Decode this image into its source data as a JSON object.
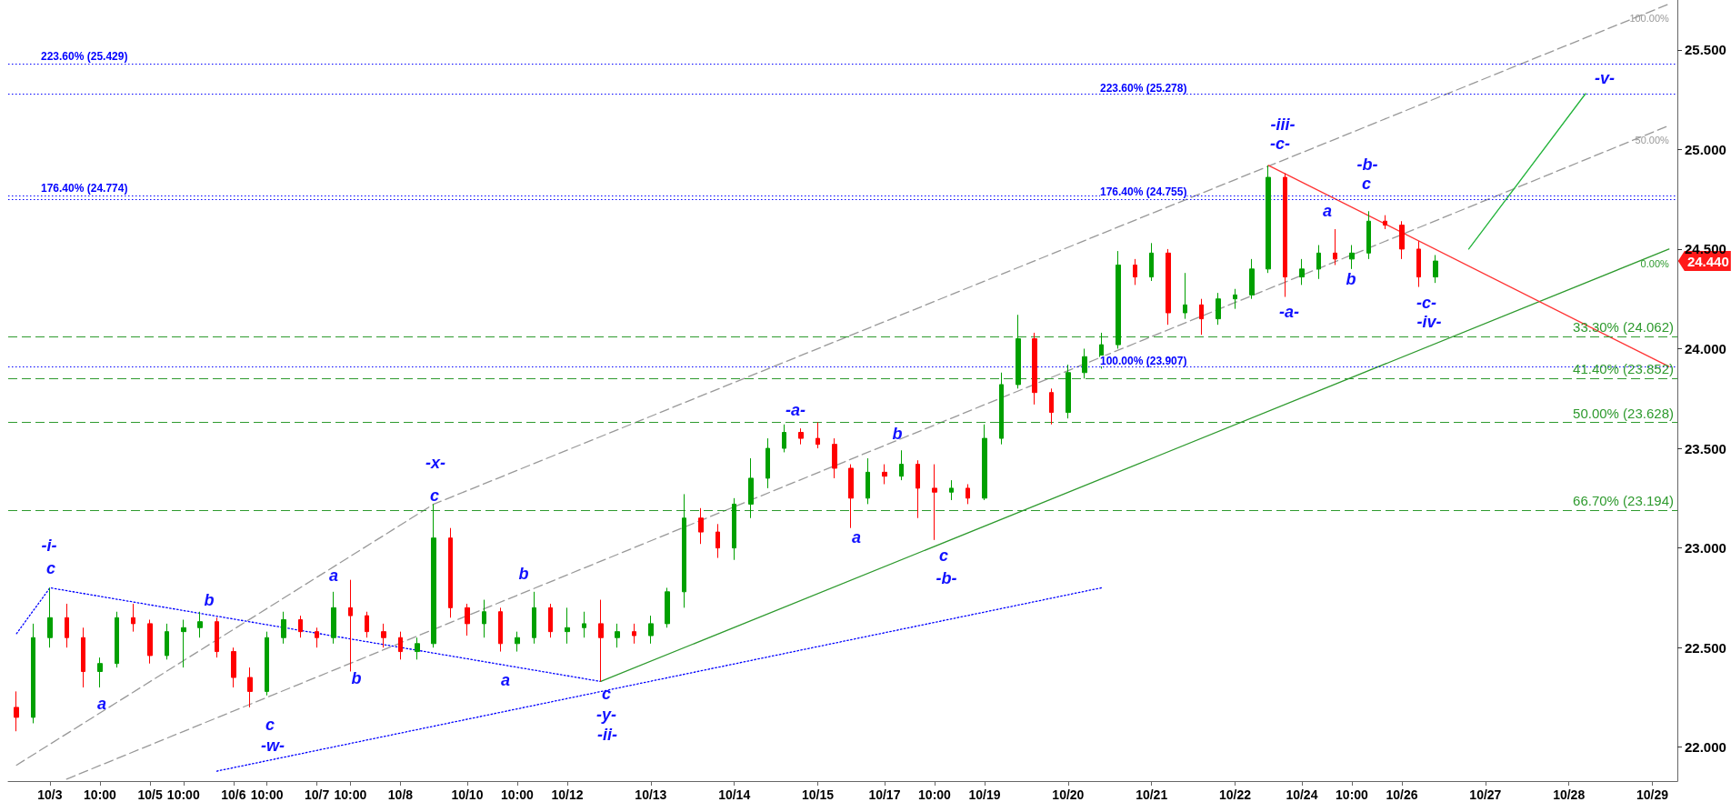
{
  "chart_data": {
    "type": "candlestick",
    "marker": "none",
    "grid": false,
    "legend": false,
    "categories": [
      null,
      null,
      "10/3",
      null,
      null,
      "10:00",
      null,
      null,
      "10/5",
      null,
      "10:00",
      null,
      null,
      "10/6",
      null,
      "10:00",
      null,
      null,
      "10/7",
      null,
      "10:00",
      null,
      null,
      "10/8",
      null,
      null,
      null,
      "10/10",
      null,
      null,
      "10:00",
      null,
      null,
      "10/12",
      null,
      null,
      null,
      null,
      "10/13",
      null,
      null,
      null,
      null,
      "10/14",
      null,
      null,
      null,
      null,
      "10/15",
      null,
      null,
      null,
      "10/17",
      null,
      null,
      "10:00",
      null,
      null,
      "10/19",
      null,
      null,
      null,
      null,
      "10/20",
      null,
      null,
      null,
      null,
      "10/21",
      null,
      null,
      null,
      null,
      "10/22",
      null,
      null,
      null,
      "10/24",
      null,
      null,
      "10:00",
      null,
      null,
      "10/26",
      null,
      null,
      null,
      null,
      "10/27",
      null,
      null,
      null,
      null,
      "10/28",
      null,
      null,
      null,
      null,
      "10/29",
      null
    ],
    "ylim": [
      21.83,
      25.75
    ],
    "yticks": [
      {
        "value": 22,
        "label": "22.000"
      },
      {
        "value": 22.5,
        "label": "22.500"
      },
      {
        "value": 23,
        "label": "23.000"
      },
      {
        "value": 23.5,
        "label": "23.500"
      },
      {
        "value": 24,
        "label": "24.000"
      },
      {
        "value": 24.5,
        "label": "24.500"
      },
      {
        "value": 25,
        "label": "25.000"
      },
      {
        "value": 25.5,
        "label": "25.500"
      }
    ],
    "ohlc": [
      [
        22.2,
        22.28,
        22.08,
        22.15
      ],
      [
        22.15,
        22.62,
        22.12,
        22.55
      ],
      [
        22.55,
        22.8,
        22.5,
        22.65
      ],
      [
        22.65,
        22.72,
        22.5,
        22.55
      ],
      [
        22.55,
        22.6,
        22.3,
        22.38
      ],
      [
        22.38,
        22.45,
        22.3,
        22.42
      ],
      [
        22.42,
        22.68,
        22.4,
        22.65
      ],
      [
        22.65,
        22.72,
        22.58,
        22.62
      ],
      [
        22.62,
        22.64,
        22.42,
        22.46
      ],
      [
        22.46,
        22.62,
        22.44,
        22.58
      ],
      [
        22.58,
        22.64,
        22.4,
        22.6
      ],
      [
        22.6,
        22.68,
        22.55,
        22.63
      ],
      [
        22.63,
        22.65,
        22.45,
        22.48
      ],
      [
        22.48,
        22.5,
        22.3,
        22.35
      ],
      [
        22.35,
        22.4,
        22.2,
        22.28
      ],
      [
        22.28,
        22.58,
        22.26,
        22.55
      ],
      [
        22.55,
        22.68,
        22.52,
        22.64
      ],
      [
        22.64,
        22.66,
        22.55,
        22.58
      ],
      [
        22.58,
        22.6,
        22.5,
        22.55
      ],
      [
        22.55,
        22.78,
        22.52,
        22.7
      ],
      [
        22.7,
        22.84,
        22.38,
        22.66
      ],
      [
        22.66,
        22.68,
        22.55,
        22.58
      ],
      [
        22.58,
        22.62,
        22.5,
        22.55
      ],
      [
        22.55,
        22.58,
        22.44,
        22.48
      ],
      [
        22.48,
        22.55,
        22.44,
        22.52
      ],
      [
        22.52,
        23.22,
        22.5,
        23.05
      ],
      [
        23.05,
        23.1,
        22.65,
        22.7
      ],
      [
        22.7,
        22.72,
        22.56,
        22.62
      ],
      [
        22.62,
        22.74,
        22.55,
        22.68
      ],
      [
        22.68,
        22.7,
        22.48,
        22.52
      ],
      [
        22.52,
        22.58,
        22.48,
        22.55
      ],
      [
        22.55,
        22.78,
        22.52,
        22.7
      ],
      [
        22.7,
        22.72,
        22.55,
        22.58
      ],
      [
        22.58,
        22.7,
        22.52,
        22.6
      ],
      [
        22.6,
        22.68,
        22.55,
        22.62
      ],
      [
        22.62,
        22.74,
        22.33,
        22.55
      ],
      [
        22.55,
        22.62,
        22.5,
        22.58
      ],
      [
        22.58,
        22.62,
        22.52,
        22.56
      ],
      [
        22.56,
        22.66,
        22.52,
        22.62
      ],
      [
        22.62,
        22.8,
        22.6,
        22.78
      ],
      [
        22.78,
        23.27,
        22.7,
        23.15
      ],
      [
        23.15,
        23.2,
        23.02,
        23.08
      ],
      [
        23.08,
        23.12,
        22.95,
        23.0
      ],
      [
        23.0,
        23.25,
        22.94,
        23.22
      ],
      [
        23.22,
        23.45,
        23.15,
        23.35
      ],
      [
        23.35,
        23.55,
        23.3,
        23.5
      ],
      [
        23.5,
        23.62,
        23.48,
        23.58
      ],
      [
        23.58,
        23.6,
        23.52,
        23.55
      ],
      [
        23.55,
        23.63,
        23.5,
        23.52
      ],
      [
        23.52,
        23.55,
        23.35,
        23.4
      ],
      [
        23.4,
        23.42,
        23.1,
        23.25
      ],
      [
        23.25,
        23.45,
        23.22,
        23.38
      ],
      [
        23.38,
        23.42,
        23.32,
        23.36
      ],
      [
        23.36,
        23.49,
        23.34,
        23.42
      ],
      [
        23.42,
        23.44,
        23.15,
        23.3
      ],
      [
        23.3,
        23.42,
        23.04,
        23.28
      ],
      [
        23.28,
        23.34,
        23.24,
        23.3
      ],
      [
        23.3,
        23.32,
        23.22,
        23.25
      ],
      [
        23.25,
        23.62,
        23.24,
        23.55
      ],
      [
        23.55,
        23.88,
        23.52,
        23.82
      ],
      [
        23.82,
        24.17,
        23.8,
        24.05
      ],
      [
        24.05,
        24.08,
        23.72,
        23.78
      ],
      [
        23.78,
        23.8,
        23.62,
        23.68
      ],
      [
        23.68,
        23.92,
        23.65,
        23.88
      ],
      [
        23.88,
        24.0,
        23.85,
        23.96
      ],
      [
        23.96,
        24.08,
        23.9,
        24.02
      ],
      [
        24.02,
        24.49,
        24.0,
        24.42
      ],
      [
        24.42,
        24.45,
        24.32,
        24.36
      ],
      [
        24.36,
        24.53,
        24.34,
        24.48
      ],
      [
        24.48,
        24.5,
        24.12,
        24.18
      ],
      [
        24.18,
        24.38,
        24.15,
        24.22
      ],
      [
        24.22,
        24.25,
        24.07,
        24.15
      ],
      [
        24.15,
        24.28,
        24.12,
        24.25
      ],
      [
        24.25,
        24.3,
        24.2,
        24.27
      ],
      [
        24.27,
        24.45,
        24.25,
        24.4
      ],
      [
        24.4,
        24.92,
        24.38,
        24.86
      ],
      [
        24.86,
        24.88,
        24.26,
        24.36
      ],
      [
        24.36,
        24.45,
        24.32,
        24.4
      ],
      [
        24.4,
        24.52,
        24.35,
        24.48
      ],
      [
        24.48,
        24.6,
        24.42,
        24.45
      ],
      [
        24.45,
        24.52,
        24.4,
        24.48
      ],
      [
        24.48,
        24.69,
        24.45,
        24.64
      ],
      [
        24.64,
        24.67,
        24.6,
        24.62
      ],
      [
        24.62,
        24.64,
        24.45,
        24.5
      ],
      [
        24.5,
        24.54,
        24.31,
        24.36
      ],
      [
        24.36,
        24.47,
        24.33,
        24.44
      ],
      null,
      null,
      null,
      null,
      null,
      null,
      null,
      null,
      null,
      null,
      null,
      null,
      null,
      null
    ],
    "series": [
      {
        "type": "line",
        "name": "100.00%",
        "color": "#999999",
        "line_style": "dashed",
        "values": [
          21.91,
          null,
          null,
          null,
          null,
          null,
          null,
          null,
          null,
          null,
          null,
          null,
          null,
          null,
          null,
          null,
          null,
          null,
          null,
          null,
          null,
          null,
          null,
          null,
          null,
          23.22,
          null,
          null,
          null,
          null,
          null,
          null,
          null,
          null,
          null,
          null,
          null,
          null,
          null,
          null,
          null,
          null,
          null,
          null,
          null,
          null,
          null,
          null,
          null,
          null,
          null,
          null,
          null,
          null,
          null,
          null,
          null,
          null,
          null,
          null,
          null,
          null,
          null,
          null,
          null,
          null,
          null,
          null,
          null,
          null,
          null,
          null,
          null,
          null,
          null,
          null,
          null,
          null,
          null,
          null,
          null,
          null,
          null,
          null,
          null,
          null,
          null,
          null,
          null,
          null,
          null,
          null,
          null,
          null,
          null,
          null,
          null,
          null,
          null,
          25.73
        ]
      },
      {
        "type": "line",
        "name": "50.00%",
        "color": "#999999",
        "line_style": "dashed",
        "values": [
          null,
          null,
          null,
          21.84,
          null,
          null,
          null,
          null,
          null,
          null,
          null,
          null,
          null,
          null,
          null,
          null,
          null,
          null,
          null,
          null,
          null,
          null,
          null,
          null,
          null,
          null,
          null,
          null,
          null,
          null,
          null,
          null,
          null,
          null,
          null,
          null,
          null,
          null,
          null,
          null,
          null,
          null,
          null,
          null,
          null,
          null,
          null,
          null,
          null,
          null,
          null,
          null,
          null,
          null,
          null,
          null,
          null,
          null,
          null,
          null,
          null,
          null,
          null,
          null,
          null,
          null,
          null,
          null,
          null,
          null,
          null,
          null,
          null,
          null,
          null,
          null,
          null,
          null,
          null,
          null,
          null,
          null,
          null,
          null,
          null,
          null,
          null,
          null,
          null,
          null,
          null,
          null,
          null,
          null,
          null,
          null,
          null,
          null,
          null,
          25.12
        ]
      },
      {
        "type": "line",
        "color": "#0000ff",
        "line_style": "dotted",
        "values": [
          22.57,
          null,
          22.8,
          null,
          null,
          null,
          null,
          null,
          null,
          null,
          null,
          null,
          null,
          null,
          null,
          null,
          null,
          null,
          null,
          null,
          null,
          null,
          null,
          null,
          null,
          null,
          null,
          null,
          null,
          null,
          null,
          null,
          null,
          null,
          null,
          22.33,
          null,
          null,
          null,
          null,
          null,
          null,
          null,
          null,
          null,
          null,
          null,
          null,
          null,
          null,
          null,
          null,
          null,
          null,
          null,
          null,
          null,
          null,
          null,
          null,
          null,
          null,
          null,
          null,
          null,
          null,
          null,
          null,
          null,
          null,
          null,
          null,
          null,
          null,
          null,
          null,
          null,
          null,
          null,
          null,
          null,
          null,
          null,
          null,
          null,
          null,
          null,
          null,
          null,
          null,
          null,
          null,
          null,
          null,
          null,
          null,
          null,
          null,
          null,
          null
        ]
      },
      {
        "type": "line",
        "color": "#0000ff",
        "line_style": "dotted",
        "values": [
          null,
          null,
          null,
          null,
          null,
          null,
          null,
          null,
          null,
          null,
          null,
          null,
          21.88,
          null,
          null,
          null,
          null,
          null,
          null,
          null,
          null,
          null,
          null,
          null,
          null,
          null,
          null,
          null,
          null,
          null,
          null,
          null,
          null,
          null,
          null,
          null,
          null,
          null,
          null,
          null,
          null,
          null,
          null,
          null,
          null,
          null,
          null,
          null,
          null,
          null,
          null,
          null,
          null,
          null,
          null,
          null,
          null,
          null,
          null,
          null,
          null,
          null,
          null,
          null,
          null,
          22.8,
          null,
          null,
          null,
          null,
          null,
          null,
          null,
          null,
          null,
          null,
          null,
          null,
          null,
          null,
          null,
          null,
          null,
          null,
          null,
          null,
          null,
          null,
          null,
          null,
          null,
          null,
          null,
          null,
          null,
          null,
          null,
          null,
          null,
          null
        ]
      },
      {
        "type": "line",
        "name": "0.00%",
        "color": "#2e9a2e",
        "line_style": "solid",
        "values": [
          null,
          null,
          null,
          null,
          null,
          null,
          null,
          null,
          null,
          null,
          null,
          null,
          null,
          null,
          null,
          null,
          null,
          null,
          null,
          null,
          null,
          null,
          null,
          null,
          null,
          null,
          null,
          null,
          null,
          null,
          null,
          null,
          null,
          null,
          null,
          22.33,
          null,
          null,
          null,
          null,
          null,
          null,
          null,
          null,
          null,
          null,
          null,
          null,
          null,
          null,
          null,
          null,
          null,
          null,
          null,
          null,
          null,
          null,
          null,
          null,
          null,
          null,
          null,
          null,
          null,
          null,
          null,
          null,
          null,
          null,
          null,
          null,
          null,
          null,
          null,
          null,
          null,
          null,
          null,
          null,
          null,
          null,
          null,
          null,
          null,
          null,
          null,
          null,
          null,
          null,
          null,
          null,
          null,
          null,
          null,
          null,
          null,
          null,
          null,
          24.5
        ]
      },
      {
        "type": "line",
        "color": "#ff3333",
        "line_style": "solid",
        "values": [
          null,
          null,
          null,
          null,
          null,
          null,
          null,
          null,
          null,
          null,
          null,
          null,
          null,
          null,
          null,
          null,
          null,
          null,
          null,
          null,
          null,
          null,
          null,
          null,
          null,
          null,
          null,
          null,
          null,
          null,
          null,
          null,
          null,
          null,
          null,
          null,
          null,
          null,
          null,
          null,
          null,
          null,
          null,
          null,
          null,
          null,
          null,
          null,
          null,
          null,
          null,
          null,
          null,
          null,
          null,
          null,
          null,
          null,
          null,
          null,
          null,
          null,
          null,
          null,
          null,
          null,
          null,
          null,
          null,
          null,
          null,
          null,
          null,
          null,
          null,
          24.92,
          null,
          null,
          null,
          null,
          null,
          null,
          null,
          null,
          null,
          null,
          null,
          null,
          null,
          null,
          null,
          null,
          null,
          null,
          null,
          null,
          null,
          null,
          null,
          23.91
        ]
      },
      {
        "type": "line",
        "color": "#22b33a",
        "line_style": "solid",
        "values": [
          null,
          null,
          null,
          null,
          null,
          null,
          null,
          null,
          null,
          null,
          null,
          null,
          null,
          null,
          null,
          null,
          null,
          null,
          null,
          null,
          null,
          null,
          null,
          null,
          null,
          null,
          null,
          null,
          null,
          null,
          null,
          null,
          null,
          null,
          null,
          null,
          null,
          null,
          null,
          null,
          null,
          null,
          null,
          null,
          null,
          null,
          null,
          null,
          null,
          null,
          null,
          null,
          null,
          null,
          null,
          null,
          null,
          null,
          null,
          null,
          null,
          null,
          null,
          null,
          null,
          null,
          null,
          null,
          null,
          null,
          null,
          null,
          null,
          null,
          null,
          null,
          null,
          null,
          null,
          null,
          null,
          null,
          null,
          null,
          null,
          null,
          null,
          24.5,
          null,
          null,
          null,
          null,
          null,
          null,
          25.28,
          null,
          null,
          null,
          null,
          null
        ]
      }
    ],
    "ref_lines": [
      {
        "axis": "y",
        "value": 25.429,
        "label": "223.60% (25.429)",
        "color": "#0000ff",
        "line_style": "dotted"
      },
      {
        "axis": "y",
        "value": 24.774,
        "label": "176.40% (24.774)",
        "color": "#0000ff",
        "line_style": "dotted"
      },
      {
        "axis": "y",
        "value": 25.278,
        "color": "#0000ff",
        "line_style": "dotted"
      },
      {
        "axis": "y",
        "value": 24.755,
        "color": "#0000ff",
        "line_style": "dotted"
      },
      {
        "axis": "y",
        "value": 23.907,
        "color": "#0000ff",
        "line_style": "dotted"
      },
      {
        "axis": "y",
        "value": 24.062,
        "label": "33.30% (24.062)",
        "color": "#2e9a2e",
        "line_style": "dashed"
      },
      {
        "axis": "y",
        "value": 23.852,
        "label": "41.40% (23.852)",
        "color": "#2e9a2e",
        "line_style": "dashed"
      },
      {
        "axis": "y",
        "value": 23.628,
        "label": "50.00% (23.628)",
        "color": "#2e9a2e",
        "line_style": "dashed"
      },
      {
        "axis": "y",
        "value": 23.194,
        "label": "66.70% (23.194)",
        "color": "#2e9a2e",
        "line_style": "dashed"
      }
    ],
    "annotations": [
      "223.60% (25.278)",
      "176.40% (24.755)",
      "100.00% (23.907)",
      "24.440",
      "-i-",
      "c",
      "a",
      "b",
      "c",
      "-w-",
      "a",
      "b",
      "-x-",
      "c",
      "a",
      "b",
      "c",
      "-y-",
      "-ii-",
      "-a-",
      "a",
      "b",
      "c",
      "-b-",
      "-iii-",
      "-c-",
      "-a-",
      "a",
      "b",
      "-b-",
      "c",
      "-c-",
      "-iv-",
      "-v-"
    ]
  }
}
